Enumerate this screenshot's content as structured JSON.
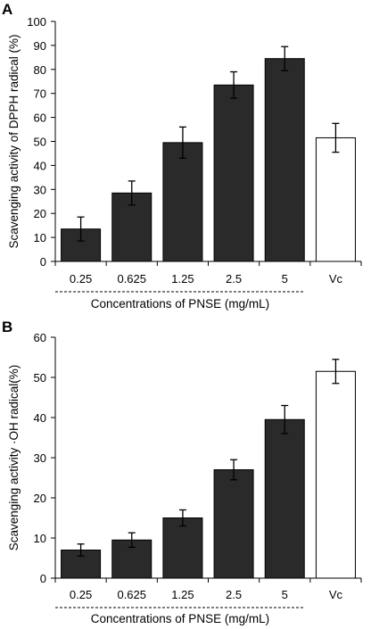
{
  "chart_data": [
    {
      "type": "bar",
      "panel_label": "A",
      "categories": [
        "0.25",
        "0.625",
        "1.25",
        "2.5",
        "5",
        "Vc"
      ],
      "values": [
        13.5,
        28.5,
        49.5,
        73.5,
        84.5,
        51.5
      ],
      "errors": [
        5.0,
        5.0,
        6.5,
        5.5,
        5.0,
        6.0
      ],
      "bar_colors": [
        "#2a2a2a",
        "#2a2a2a",
        "#2a2a2a",
        "#2a2a2a",
        "#2a2a2a",
        "#ffffff"
      ],
      "ylabel": "Scavenging activity of DPPH radical (%)",
      "xlabel": "Concentrations of PNSE (mg/mL)",
      "ylim": [
        0,
        100
      ],
      "yticks": [
        0,
        10,
        20,
        30,
        40,
        50,
        60,
        70,
        80,
        90,
        100
      ],
      "grid": false
    },
    {
      "type": "bar",
      "panel_label": "B",
      "categories": [
        "0.25",
        "0.625",
        "1.25",
        "2.5",
        "5",
        "Vc"
      ],
      "values": [
        7.0,
        9.5,
        15.0,
        27.0,
        39.5,
        51.5
      ],
      "errors": [
        1.5,
        1.8,
        2.0,
        2.5,
        3.5,
        3.0
      ],
      "bar_colors": [
        "#2a2a2a",
        "#2a2a2a",
        "#2a2a2a",
        "#2a2a2a",
        "#2a2a2a",
        "#ffffff"
      ],
      "ylabel": "Scavenging activity ·OH radical(%)",
      "xlabel": "Concentrations of PNSE (mg/mL)",
      "ylim": [
        0,
        60
      ],
      "yticks": [
        0,
        10,
        20,
        30,
        40,
        50,
        60
      ],
      "grid": false
    }
  ]
}
